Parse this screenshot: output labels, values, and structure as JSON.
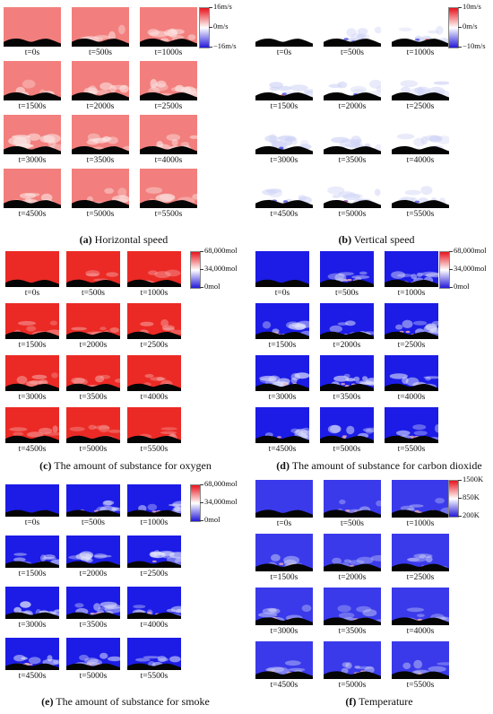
{
  "time_labels": [
    "t=0s",
    "t=500s",
    "t=1000s",
    "t=1500s",
    "t=2000s",
    "t=2500s",
    "t=3000s",
    "t=3500s",
    "t=4000s",
    "t=4500s",
    "t=5000s",
    "t=5500s"
  ],
  "panels": [
    {
      "id": "a",
      "letter": "(a)",
      "caption": "Horizontal speed",
      "colorbar": {
        "max": "16m/s",
        "mid": "0m/s",
        "min": "−16m/s",
        "colors": [
          "#e8141c",
          "#ffffff",
          "#2318d8"
        ]
      },
      "field_color": "#f27f7d",
      "plume_color": "#fbe4e2",
      "plume_strength": [
        0,
        0.4,
        0.55,
        0.6,
        0.65,
        0.75,
        0.85,
        0.7,
        0.6,
        0.55,
        0.5,
        0.5
      ]
    },
    {
      "id": "b",
      "letter": "(b)",
      "caption": "Vertical speed",
      "colorbar": {
        "max": "10m/s",
        "mid": "0m/s",
        "min": "−10m/s",
        "colors": [
          "#e8141c",
          "#ffffff",
          "#2318d8"
        ]
      },
      "field_color": "#ffffff",
      "plume_color": "#cfd3f5",
      "plume_strength": [
        0,
        0.6,
        0.55,
        0.6,
        0.55,
        0.65,
        0.85,
        0.8,
        0.7,
        0.6,
        0.6,
        0.55
      ]
    },
    {
      "id": "c",
      "letter": "(c)",
      "caption": "The amount of substance for oxygen",
      "colorbar": {
        "max": "68,000mol",
        "mid": "34,000mol",
        "min": "0mol",
        "colors": [
          "#e8141c",
          "#ffffff",
          "#2318d8"
        ]
      },
      "field_color": "#eb2a25",
      "plume_color": "#f5a8a6",
      "plume_strength": [
        0,
        0.3,
        0.35,
        0.4,
        0.4,
        0.45,
        0.55,
        0.45,
        0.4,
        0.4,
        0.4,
        0.4
      ]
    },
    {
      "id": "d",
      "letter": "(d)",
      "caption": "The amount of substance for carbon dioxide",
      "colorbar": {
        "max": "68,000mol",
        "mid": "34,000mol",
        "min": "0mol",
        "colors": [
          "#e8141c",
          "#ffffff",
          "#2318d8"
        ]
      },
      "field_color": "#1c1ce6",
      "plume_color": "#dfe2fb",
      "plume_strength": [
        0,
        0.5,
        0.55,
        0.6,
        0.6,
        0.7,
        0.85,
        0.75,
        0.6,
        0.55,
        0.5,
        0.5
      ]
    },
    {
      "id": "e",
      "letter": "(e)",
      "caption": "The amount of substance for smoke",
      "colorbar": {
        "max": "68,000mol",
        "mid": "34,000mol",
        "min": "0mol",
        "colors": [
          "#e8141c",
          "#ffffff",
          "#2318d8"
        ]
      },
      "field_color": "#1c1ce6",
      "plume_color": "#dfe2fb",
      "plume_strength": [
        0,
        0.5,
        0.55,
        0.6,
        0.6,
        0.7,
        0.85,
        0.75,
        0.6,
        0.55,
        0.5,
        0.5
      ]
    },
    {
      "id": "f",
      "letter": "(f)",
      "caption": "Temperature",
      "colorbar": {
        "max": "1500K",
        "mid": "850K",
        "min": "200K",
        "colors": [
          "#e8141c",
          "#ffffff",
          "#2318d8"
        ]
      },
      "field_color": "#3a3aeb",
      "plume_color": "#c9cdf6",
      "plume_strength": [
        0,
        0.35,
        0.35,
        0.4,
        0.4,
        0.45,
        0.5,
        0.45,
        0.4,
        0.4,
        0.4,
        0.4
      ]
    }
  ]
}
